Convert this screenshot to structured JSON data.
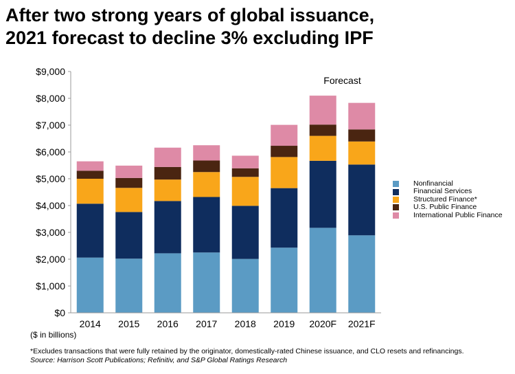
{
  "title_lines": [
    "After two strong years of global issuance,",
    "2021 forecast to decline 3% excluding IPF"
  ],
  "forecast_label": "Forecast",
  "unit_note": "($ in billions)",
  "footnote": "*Excludes transactions that were fully retained by the originator, domestically-rated Chinese issuance, and CLO resets and refinancings.",
  "source": "Source: Harrison Scott Publications; Refinitiv, and S&P Global Ratings Research",
  "chart_data": {
    "type": "bar",
    "stacked": true,
    "categories": [
      "2014",
      "2015",
      "2016",
      "2017",
      "2018",
      "2019",
      "2020F",
      "2021F"
    ],
    "forecast_categories": [
      "2020F",
      "2021F"
    ],
    "ylim": [
      0,
      9000
    ],
    "yticks": [
      0,
      1000,
      2000,
      3000,
      4000,
      5000,
      6000,
      7000,
      8000,
      9000
    ],
    "ytick_labels": [
      "$0",
      "$1,000",
      "$2,000",
      "$3,000",
      "$4,000",
      "$5,000",
      "$6,000",
      "$7,000",
      "$8,000",
      "$9,000"
    ],
    "legend_position": "right",
    "series": [
      {
        "name": "Nonfinancial",
        "color": "#5b9bc4",
        "values": [
          2060,
          2020,
          2220,
          2250,
          2010,
          2430,
          3170,
          2890
        ]
      },
      {
        "name": "Financial Services",
        "color": "#0f2d5e",
        "values": [
          2010,
          1740,
          1950,
          2070,
          1980,
          2220,
          2500,
          2640
        ]
      },
      {
        "name": "Structured Finance*",
        "color": "#f9a61a",
        "values": [
          930,
          900,
          800,
          930,
          1080,
          1160,
          930,
          860
        ]
      },
      {
        "name": "U.S. Public Finance",
        "color": "#4a2511",
        "values": [
          300,
          370,
          470,
          430,
          320,
          420,
          420,
          450
        ]
      },
      {
        "name": "International Public Finance",
        "color": "#de8aa6",
        "values": [
          350,
          460,
          720,
          570,
          470,
          780,
          1080,
          990
        ]
      }
    ]
  }
}
